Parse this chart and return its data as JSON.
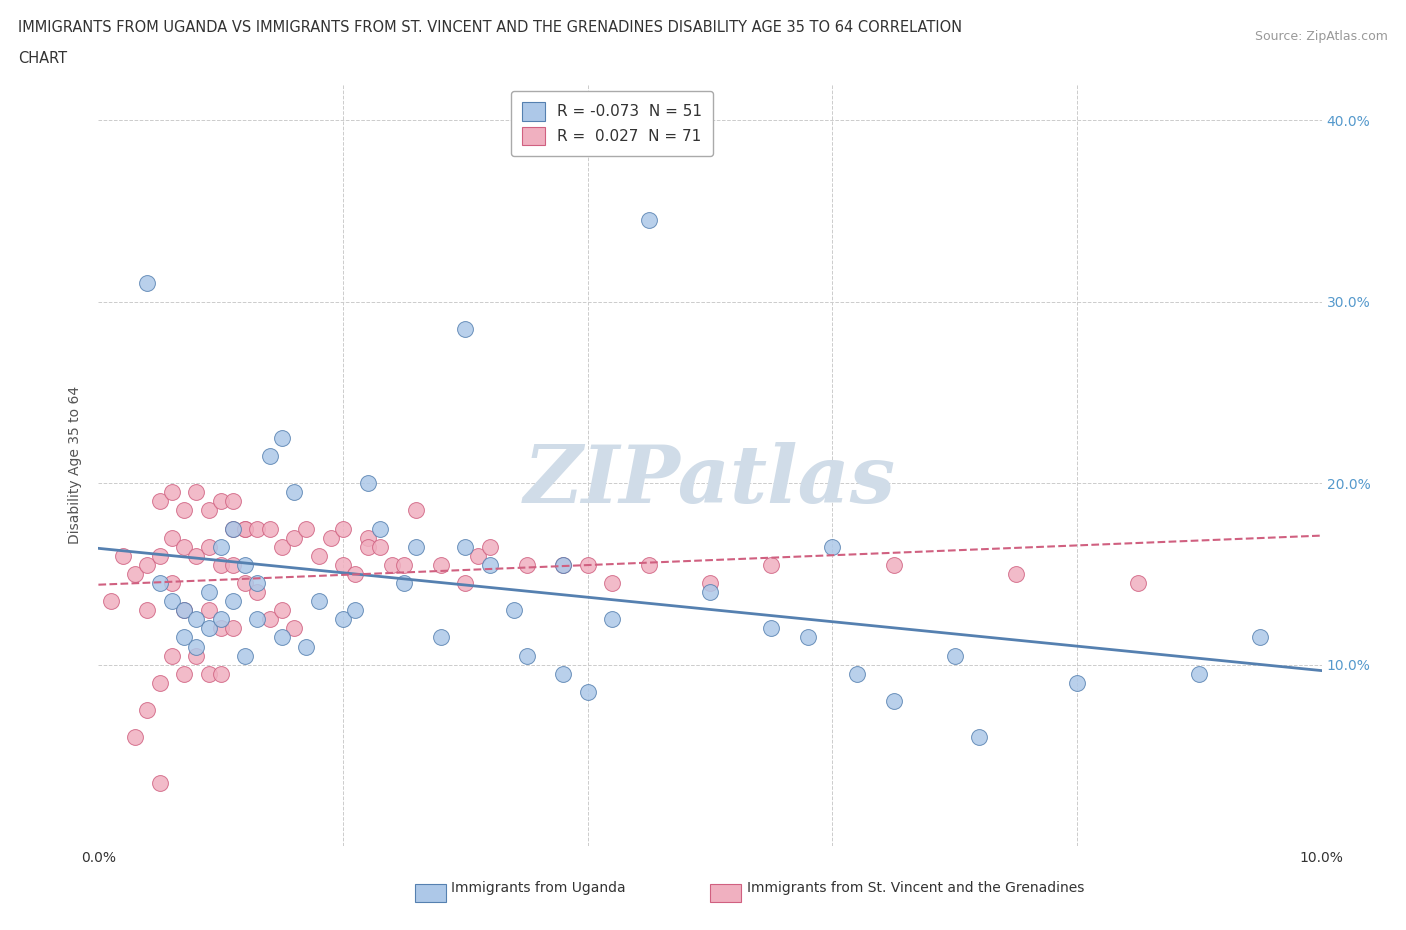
{
  "title_line1": "IMMIGRANTS FROM UGANDA VS IMMIGRANTS FROM ST. VINCENT AND THE GRENADINES DISABILITY AGE 35 TO 64 CORRELATION",
  "title_line2": "CHART",
  "source": "Source: ZipAtlas.com",
  "ylabel": "Disability Age 35 to 64",
  "xlim": [
    0.0,
    0.1
  ],
  "ylim": [
    0.0,
    0.42
  ],
  "color_uganda": "#adc8e8",
  "color_stvincent": "#f0b0c0",
  "line_color_uganda": "#5580b0",
  "line_color_stvincent": "#d06080",
  "watermark": "ZIPatlas",
  "uganda_x": [
    0.004,
    0.005,
    0.006,
    0.007,
    0.007,
    0.008,
    0.008,
    0.009,
    0.009,
    0.01,
    0.01,
    0.011,
    0.011,
    0.012,
    0.012,
    0.013,
    0.013,
    0.014,
    0.015,
    0.015,
    0.016,
    0.017,
    0.018,
    0.02,
    0.021,
    0.022,
    0.023,
    0.025,
    0.026,
    0.028,
    0.03,
    0.03,
    0.032,
    0.034,
    0.035,
    0.038,
    0.038,
    0.04,
    0.042,
    0.045,
    0.05,
    0.055,
    0.058,
    0.06,
    0.062,
    0.065,
    0.07,
    0.072,
    0.08,
    0.09,
    0.095
  ],
  "uganda_y": [
    0.31,
    0.145,
    0.135,
    0.13,
    0.115,
    0.125,
    0.11,
    0.14,
    0.12,
    0.165,
    0.125,
    0.175,
    0.135,
    0.155,
    0.105,
    0.125,
    0.145,
    0.215,
    0.225,
    0.115,
    0.195,
    0.11,
    0.135,
    0.125,
    0.13,
    0.2,
    0.175,
    0.145,
    0.165,
    0.115,
    0.165,
    0.285,
    0.155,
    0.13,
    0.105,
    0.095,
    0.155,
    0.085,
    0.125,
    0.345,
    0.14,
    0.12,
    0.115,
    0.165,
    0.095,
    0.08,
    0.105,
    0.06,
    0.09,
    0.095,
    0.115
  ],
  "stvincent_x": [
    0.001,
    0.002,
    0.003,
    0.003,
    0.004,
    0.004,
    0.004,
    0.005,
    0.005,
    0.005,
    0.005,
    0.006,
    0.006,
    0.006,
    0.006,
    0.007,
    0.007,
    0.007,
    0.007,
    0.008,
    0.008,
    0.008,
    0.009,
    0.009,
    0.009,
    0.009,
    0.01,
    0.01,
    0.01,
    0.01,
    0.011,
    0.011,
    0.011,
    0.011,
    0.012,
    0.012,
    0.012,
    0.013,
    0.013,
    0.014,
    0.014,
    0.015,
    0.015,
    0.016,
    0.016,
    0.017,
    0.018,
    0.019,
    0.02,
    0.02,
    0.021,
    0.022,
    0.022,
    0.023,
    0.024,
    0.025,
    0.026,
    0.028,
    0.03,
    0.031,
    0.032,
    0.035,
    0.038,
    0.04,
    0.042,
    0.045,
    0.05,
    0.055,
    0.065,
    0.075,
    0.085
  ],
  "stvincent_y": [
    0.135,
    0.16,
    0.15,
    0.06,
    0.155,
    0.13,
    0.075,
    0.19,
    0.16,
    0.09,
    0.035,
    0.195,
    0.17,
    0.105,
    0.145,
    0.165,
    0.13,
    0.095,
    0.185,
    0.195,
    0.16,
    0.105,
    0.165,
    0.13,
    0.095,
    0.185,
    0.19,
    0.155,
    0.12,
    0.095,
    0.19,
    0.155,
    0.12,
    0.175,
    0.175,
    0.145,
    0.175,
    0.175,
    0.14,
    0.175,
    0.125,
    0.165,
    0.13,
    0.17,
    0.12,
    0.175,
    0.16,
    0.17,
    0.155,
    0.175,
    0.15,
    0.17,
    0.165,
    0.165,
    0.155,
    0.155,
    0.185,
    0.155,
    0.145,
    0.16,
    0.165,
    0.155,
    0.155,
    0.155,
    0.145,
    0.155,
    0.145,
    0.155,
    0.155,
    0.15,
    0.145
  ]
}
